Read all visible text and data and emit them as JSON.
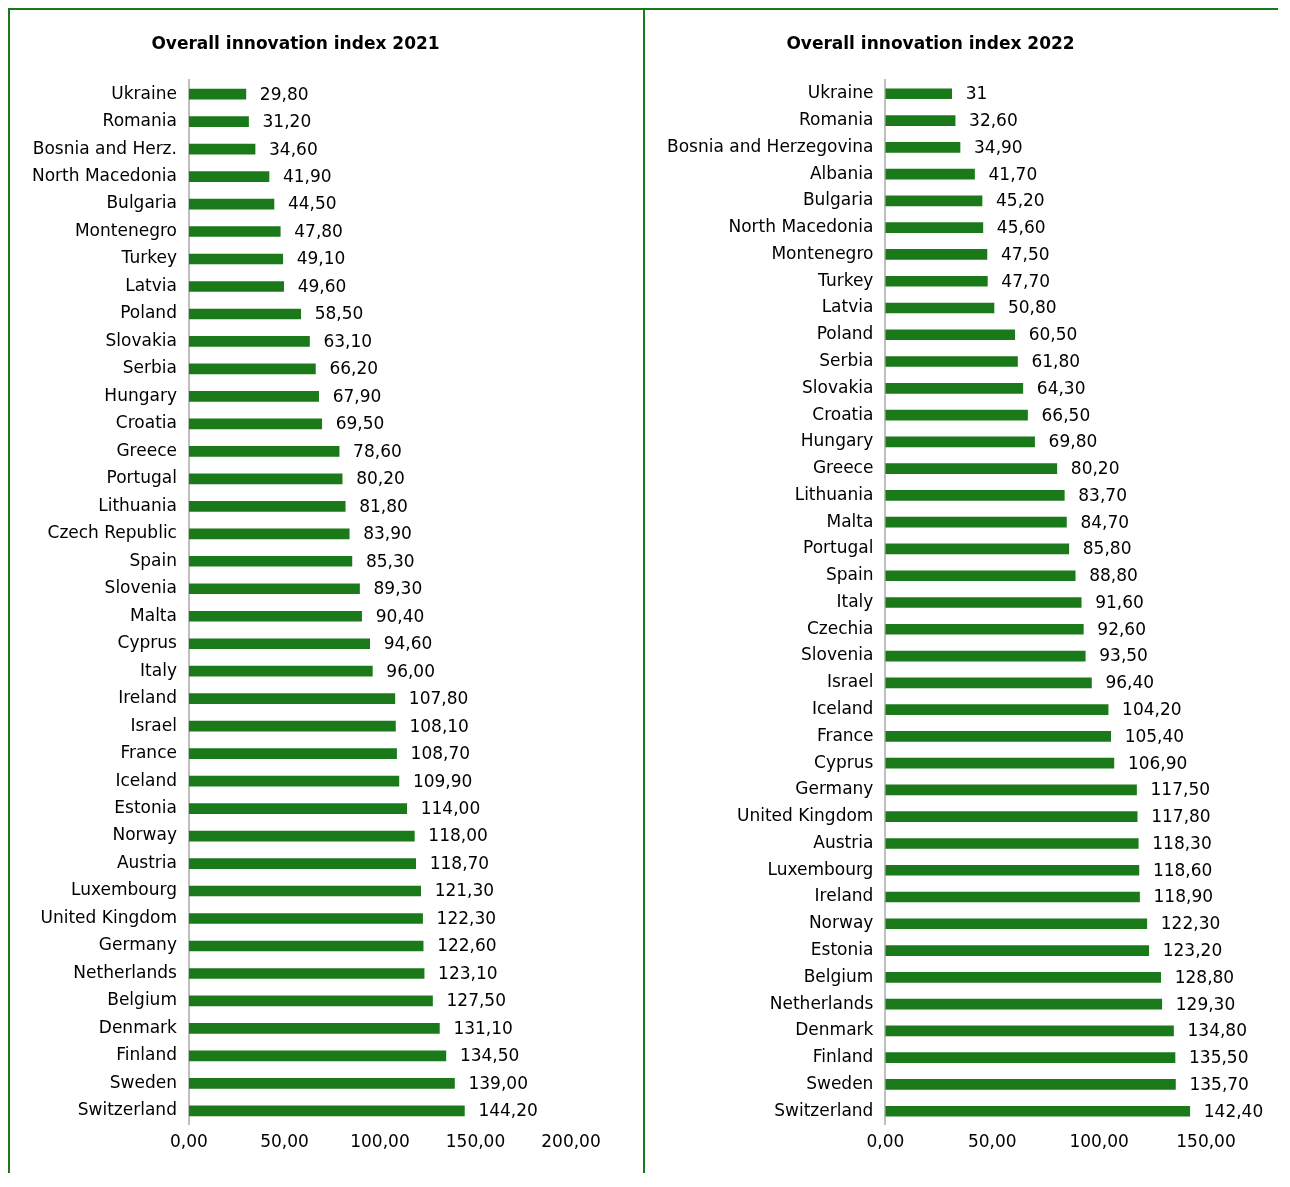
{
  "chart_data": [
    {
      "type": "bar",
      "orientation": "horizontal",
      "title": "Overall innovation index 2021",
      "color": "#1a7a1a",
      "categories": [
        "Ukraine",
        "Romania",
        "Bosnia and Herz.",
        "North Macedonia",
        "Bulgaria",
        "Montenegro",
        "Turkey",
        "Latvia",
        "Poland",
        "Slovakia",
        "Serbia",
        "Hungary",
        "Croatia",
        "Greece",
        "Portugal",
        "Lithuania",
        "Czech Republic",
        "Spain",
        "Slovenia",
        "Malta",
        "Cyprus",
        "Italy",
        "Ireland",
        "Israel",
        "France",
        "Iceland",
        "Estonia",
        "Norway",
        "Austria",
        "Luxembourg",
        "United Kingdom",
        "Germany",
        "Netherlands",
        "Belgium",
        "Denmark",
        "Finland",
        "Sweden",
        "Switzerland"
      ],
      "values": [
        29.8,
        31.2,
        34.6,
        41.9,
        44.5,
        47.8,
        49.1,
        49.6,
        58.5,
        63.1,
        66.2,
        67.9,
        69.5,
        78.6,
        80.2,
        81.8,
        83.9,
        85.3,
        89.3,
        90.4,
        94.6,
        96.0,
        107.8,
        108.1,
        108.7,
        109.9,
        114.0,
        118.0,
        118.7,
        121.3,
        122.3,
        122.6,
        123.1,
        127.5,
        131.1,
        134.5,
        139.0,
        144.2
      ],
      "value_labels": [
        "29,80",
        "31,20",
        "34,60",
        "41,90",
        "44,50",
        "47,80",
        "49,10",
        "49,60",
        "58,50",
        "63,10",
        "66,20",
        "67,90",
        "69,50",
        "78,60",
        "80,20",
        "81,80",
        "83,90",
        "85,30",
        "89,30",
        "90,40",
        "94,60",
        "96,00",
        "107,80",
        "108,10",
        "108,70",
        "109,90",
        "114,00",
        "118,00",
        "118,70",
        "121,30",
        "122,30",
        "122,60",
        "123,10",
        "127,50",
        "131,10",
        "134,50",
        "139,00",
        "144,20"
      ],
      "xlim": [
        0,
        200
      ],
      "xticks": [
        {
          "value": 0,
          "label": "0,00"
        },
        {
          "value": 50,
          "label": "50,00"
        },
        {
          "value": 100,
          "label": "100,00"
        },
        {
          "value": 150,
          "label": "150,00"
        },
        {
          "value": 200,
          "label": "200,00"
        }
      ]
    },
    {
      "type": "bar",
      "orientation": "horizontal",
      "title": "Overall innovation index 2022",
      "color": "#1a7a1a",
      "categories": [
        "Ukraine",
        "Romania",
        "Bosnia and Herzegovina",
        "Albania",
        "Bulgaria",
        "North Macedonia",
        "Montenegro",
        "Turkey",
        "Latvia",
        "Poland",
        "Serbia",
        "Slovakia",
        "Croatia",
        "Hungary",
        "Greece",
        "Lithuania",
        "Malta",
        "Portugal",
        "Spain",
        "Italy",
        "Czechia",
        "Slovenia",
        "Israel",
        "Iceland",
        "France",
        "Cyprus",
        "Germany",
        "United Kingdom",
        "Austria",
        "Luxembourg",
        "Ireland",
        "Norway",
        "Estonia",
        "Belgium",
        "Netherlands",
        "Denmark",
        "Finland",
        "Sweden",
        "Switzerland"
      ],
      "values": [
        31,
        32.6,
        34.9,
        41.7,
        45.2,
        45.6,
        47.5,
        47.7,
        50.8,
        60.5,
        61.8,
        64.3,
        66.5,
        69.8,
        80.2,
        83.7,
        84.7,
        85.8,
        88.8,
        91.6,
        92.6,
        93.5,
        96.4,
        104.2,
        105.4,
        106.9,
        117.5,
        117.8,
        118.3,
        118.6,
        118.9,
        122.3,
        123.2,
        128.8,
        129.3,
        134.8,
        135.5,
        135.7,
        142.4
      ],
      "value_labels": [
        "31",
        "32,60",
        "34,90",
        "41,70",
        "45,20",
        "45,60",
        "47,50",
        "47,70",
        "50,80",
        "60,50",
        "61,80",
        "64,30",
        "66,50",
        "69,80",
        "80,20",
        "83,70",
        "84,70",
        "85,80",
        "88,80",
        "91,60",
        "92,60",
        "93,50",
        "96,40",
        "104,20",
        "105,40",
        "106,90",
        "117,50",
        "117,80",
        "118,30",
        "118,60",
        "118,90",
        "122,30",
        "123,20",
        "128,80",
        "129,30",
        "134,80",
        "135,50",
        "135,70",
        "142,40"
      ],
      "xlim": [
        0,
        150
      ],
      "xticks": [
        {
          "value": 0,
          "label": "0,00"
        },
        {
          "value": 50,
          "label": "50,00"
        },
        {
          "value": 100,
          "label": "100,00"
        },
        {
          "value": 150,
          "label": "150,00"
        }
      ]
    }
  ]
}
